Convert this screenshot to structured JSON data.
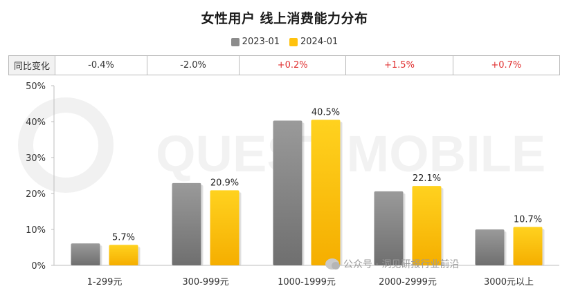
{
  "title": "女性用户 线上消费能力分布",
  "legend": [
    {
      "label": "2023-01",
      "color": "#8c8c8c"
    },
    {
      "label": "2024-01",
      "color": "#ffc20e"
    }
  ],
  "yoy": {
    "header": "同比变化",
    "values": [
      "-0.4%",
      "-2.0%",
      "+0.2%",
      "+1.5%",
      "+0.7%"
    ],
    "colors": [
      "#333333",
      "#333333",
      "#e03030",
      "#e03030",
      "#e03030"
    ]
  },
  "watermark_text": "公众号 · 洞见研报行业前沿",
  "chart_data": {
    "type": "bar",
    "title": "女性用户 线上消费能力分布",
    "categories": [
      "1-299元",
      "300-999元",
      "1000-1999元",
      "2000-2999元",
      "3000元以上"
    ],
    "series": [
      {
        "name": "2023-01",
        "values": [
          6.1,
          22.9,
          40.3,
          20.6,
          10.0
        ],
        "color": "#8c8c8c"
      },
      {
        "name": "2024-01",
        "values": [
          5.7,
          20.9,
          40.5,
          22.1,
          10.7
        ],
        "color": "#ffc20e"
      }
    ],
    "data_labels": [
      null,
      null,
      null,
      null,
      null
    ],
    "data_labels_2024": [
      "5.7%",
      "20.9%",
      "40.5%",
      "22.1%",
      "10.7%"
    ],
    "yticks": [
      "0%",
      "10%",
      "20%",
      "30%",
      "40%",
      "50%"
    ],
    "ylim": [
      0,
      50
    ],
    "grid": false,
    "legend_position": "top-center"
  }
}
